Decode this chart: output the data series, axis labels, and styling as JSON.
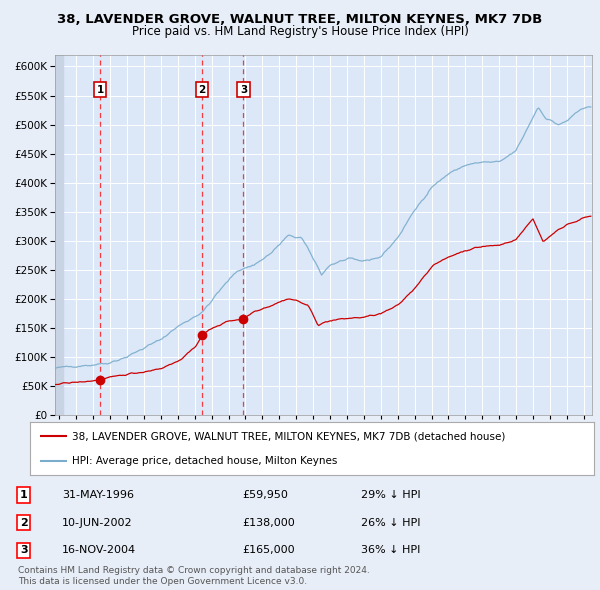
{
  "title1": "38, LAVENDER GROVE, WALNUT TREE, MILTON KEYNES, MK7 7DB",
  "title2": "Price paid vs. HM Land Registry's House Price Index (HPI)",
  "legend_red": "38, LAVENDER GROVE, WALNUT TREE, MILTON KEYNES, MK7 7DB (detached house)",
  "legend_blue": "HPI: Average price, detached house, Milton Keynes",
  "footnote": "Contains HM Land Registry data © Crown copyright and database right 2024.\nThis data is licensed under the Open Government Licence v3.0.",
  "transactions": [
    {
      "num": 1,
      "date": "31-MAY-1996",
      "price": 59950,
      "year": 1996.41
    },
    {
      "num": 2,
      "date": "10-JUN-2002",
      "price": 138000,
      "year": 2002.44
    },
    {
      "num": 3,
      "date": "16-NOV-2004",
      "price": 165000,
      "year": 2004.88
    }
  ],
  "background_color": "#e8eef8",
  "plot_bg": "#dce8f8",
  "red_color": "#cc0000",
  "blue_color": "#7aaccc",
  "ylim": [
    0,
    620000
  ],
  "xlim_start": 1993.75,
  "xlim_end": 2025.5
}
